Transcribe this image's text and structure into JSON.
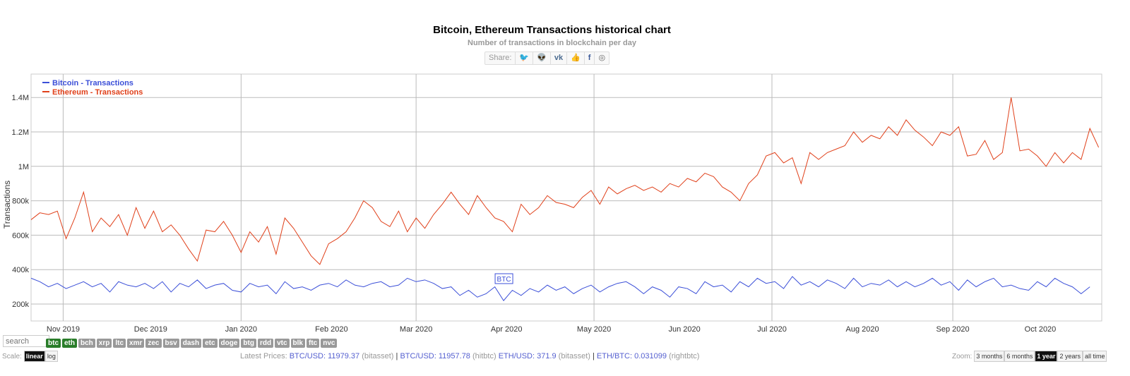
{
  "chart_data": {
    "type": "line",
    "title": "Bitcoin, Ethereum Transactions historical chart",
    "subtitle": "Number of transactions in blockchain per day",
    "ylabel": "Transactions",
    "ylim": [
      100000,
      1540000
    ],
    "yticks": [
      {
        "v": 200000,
        "label": "200k"
      },
      {
        "v": 400000,
        "label": "400k"
      },
      {
        "v": 600000,
        "label": "600k"
      },
      {
        "v": 800000,
        "label": "800k"
      },
      {
        "v": 1000000,
        "label": "1M"
      },
      {
        "v": 1200000,
        "label": "1.2M"
      },
      {
        "v": 1400000,
        "label": "1.4M"
      }
    ],
    "start_date": "2019-10-21",
    "step_days": 3,
    "xticks": [
      {
        "day": 11,
        "label": "Nov 2019"
      },
      {
        "day": 41,
        "label": "Dec 2019"
      },
      {
        "day": 72,
        "label": "Jan 2020"
      },
      {
        "day": 103,
        "label": "Feb 2020"
      },
      {
        "day": 132,
        "label": "Mar 2020"
      },
      {
        "day": 163,
        "label": "Apr 2020"
      },
      {
        "day": 193,
        "label": "May 2020"
      },
      {
        "day": 224,
        "label": "Jun 2020"
      },
      {
        "day": 254,
        "label": "Jul 2020"
      },
      {
        "day": 285,
        "label": "Aug 2020"
      },
      {
        "day": 316,
        "label": "Sep 2020"
      },
      {
        "day": 346,
        "label": "Oct 2020"
      }
    ],
    "legend_position": "top-left",
    "series": [
      {
        "name": "Bitcoin - Transactions",
        "color": "#3b4fd8",
        "values": [
          350,
          330,
          300,
          320,
          290,
          310,
          330,
          300,
          320,
          270,
          330,
          310,
          300,
          320,
          290,
          330,
          270,
          320,
          300,
          340,
          290,
          310,
          320,
          280,
          270,
          320,
          300,
          310,
          260,
          330,
          290,
          300,
          280,
          310,
          320,
          300,
          340,
          310,
          300,
          320,
          330,
          300,
          310,
          350,
          330,
          340,
          320,
          290,
          300,
          250,
          280,
          240,
          260,
          300,
          220,
          280,
          250,
          290,
          270,
          310,
          280,
          300,
          260,
          290,
          310,
          270,
          300,
          320,
          330,
          300,
          260,
          300,
          280,
          240,
          300,
          290,
          260,
          330,
          300,
          310,
          270,
          330,
          300,
          350,
          320,
          330,
          290,
          360,
          310,
          330,
          300,
          340,
          320,
          290,
          350,
          300,
          320,
          310,
          340,
          300,
          330,
          300,
          320,
          350,
          310,
          330,
          280,
          340,
          300,
          330,
          350,
          300,
          310,
          290,
          280,
          330,
          300,
          350,
          320,
          300,
          260,
          300
        ],
        "flag": {
          "day": 162,
          "label": "BTC"
        }
      },
      {
        "name": "Ethereum - Transactions",
        "color": "#e0401a",
        "values": [
          690,
          730,
          720,
          740,
          580,
          700,
          850,
          620,
          700,
          650,
          720,
          600,
          760,
          640,
          740,
          620,
          660,
          600,
          520,
          450,
          630,
          620,
          680,
          600,
          500,
          620,
          560,
          650,
          490,
          700,
          640,
          560,
          480,
          430,
          550,
          580,
          620,
          700,
          800,
          760,
          680,
          650,
          740,
          620,
          700,
          640,
          720,
          780,
          850,
          780,
          720,
          830,
          760,
          700,
          680,
          620,
          780,
          720,
          760,
          830,
          790,
          780,
          760,
          820,
          860,
          780,
          880,
          840,
          870,
          890,
          860,
          880,
          850,
          900,
          880,
          930,
          910,
          960,
          940,
          880,
          850,
          800,
          900,
          950,
          1060,
          1080,
          1020,
          1050,
          900,
          1080,
          1040,
          1080,
          1100,
          1120,
          1200,
          1140,
          1180,
          1160,
          1230,
          1180,
          1270,
          1210,
          1170,
          1120,
          1200,
          1180,
          1230,
          1060,
          1070,
          1150,
          1040,
          1080,
          1400,
          1090,
          1100,
          1060,
          1000,
          1080,
          1020,
          1080,
          1040,
          1220,
          1110
        ]
      }
    ]
  },
  "share": {
    "label": "Share:",
    "icons": [
      "twitter-icon",
      "reddit-icon",
      "vk-icon",
      "like-icon",
      "facebook-icon",
      "weibo-icon"
    ]
  },
  "search": {
    "placeholder": "search"
  },
  "coins": [
    {
      "label": "btc",
      "on": true
    },
    {
      "label": "eth",
      "on": true
    },
    {
      "label": "bch"
    },
    {
      "label": "xrp"
    },
    {
      "label": "ltc"
    },
    {
      "label": "xmr"
    },
    {
      "label": "zec"
    },
    {
      "label": "bsv"
    },
    {
      "label": "dash"
    },
    {
      "label": "etc"
    },
    {
      "label": "doge"
    },
    {
      "label": "btg"
    },
    {
      "label": "rdd"
    },
    {
      "label": "vtc"
    },
    {
      "label": "blk"
    },
    {
      "label": "ftc"
    },
    {
      "label": "nvc"
    }
  ],
  "scale": {
    "label": "Scale:",
    "linear": "linear",
    "log": "log"
  },
  "prices": {
    "label": "Latest Prices:",
    "p1": "BTC/USD: 11979.37",
    "s1": "(bitasset)",
    "p2": "BTC/USD: 11957.78",
    "s2": "(hitbtc)",
    "p3": "ETH/USD: 371.9",
    "s3": "(bitasset)",
    "p4": "ETH/BTC: 0.031099",
    "s4": "(rightbtc)",
    "sep": "|"
  },
  "zoom": {
    "label": "Zoom:",
    "options": [
      "3 months",
      "6 months",
      "1 year",
      "2 years",
      "all time"
    ],
    "active": "1 year"
  }
}
